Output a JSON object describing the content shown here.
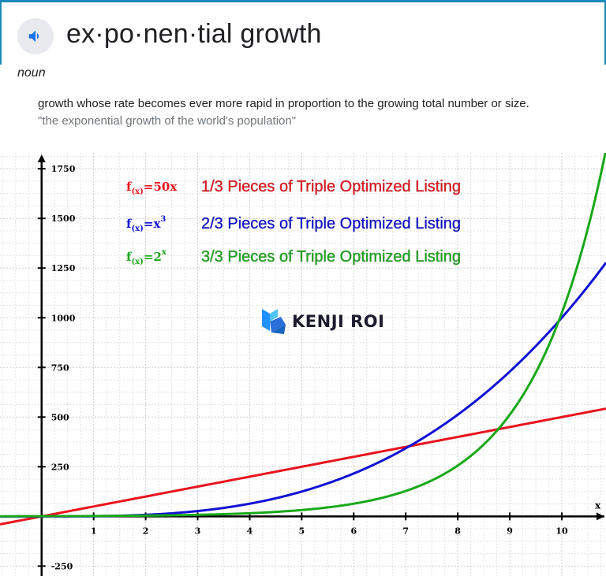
{
  "dictionary": {
    "word": "ex·po·nen·tial growth",
    "part_of_speech": "noun",
    "definition": "growth whose rate becomes ever more rapid in proportion to the growing total number or size.",
    "example": "\"the exponential growth of the world's population\""
  },
  "speaker_icon": "speaker-icon",
  "logo": {
    "text": "KENJI ROI",
    "icon": "kenji-roi-logo-icon"
  },
  "colors": {
    "red": "#e8141e",
    "blue": "#1111d4",
    "green": "#18a818",
    "accent": "#1a8bb8"
  },
  "chart_data": {
    "type": "line",
    "title": "",
    "xlabel": "x",
    "ylabel": "",
    "xlim": [
      -0.8,
      10.85
    ],
    "ylim": [
      -300,
      1830
    ],
    "grid": true,
    "x_ticks": [
      1,
      2,
      3,
      4,
      5,
      6,
      7,
      8,
      9,
      10
    ],
    "y_ticks": [
      -250,
      250,
      500,
      750,
      1000,
      1250,
      1500,
      1750
    ],
    "series": [
      {
        "name": "f(x)=50x",
        "formula": "50x",
        "color": "#e8141e",
        "label": "1/3 Pieces of Triple Optimized Listing"
      },
      {
        "name": "f(x)=x^3",
        "formula": "x^3",
        "color": "#1111d4",
        "label": "2/3 Pieces of Triple Optimized Listing"
      },
      {
        "name": "f(x)=2^x",
        "formula": "2^x",
        "color": "#18a818",
        "label": "3/3 Pieces of Triple Optimized Listing"
      }
    ],
    "legend": [
      {
        "fn": "f",
        "sub": "(x)",
        "rhs": "=50x",
        "sup": "",
        "text": "1/3 Pieces of Triple Optimized Listing",
        "color": "#e8141e"
      },
      {
        "fn": "f",
        "sub": "(x)",
        "rhs": "=x",
        "sup": "3",
        "text": "2/3 Pieces of Triple Optimized Listing",
        "color": "#1111d4"
      },
      {
        "fn": "f",
        "sub": "(x)",
        "rhs": "=2",
        "sup": "x",
        "text": "3/3 Pieces of Triple Optimized Listing",
        "color": "#18a818"
      }
    ],
    "legend_position": "top-center"
  }
}
